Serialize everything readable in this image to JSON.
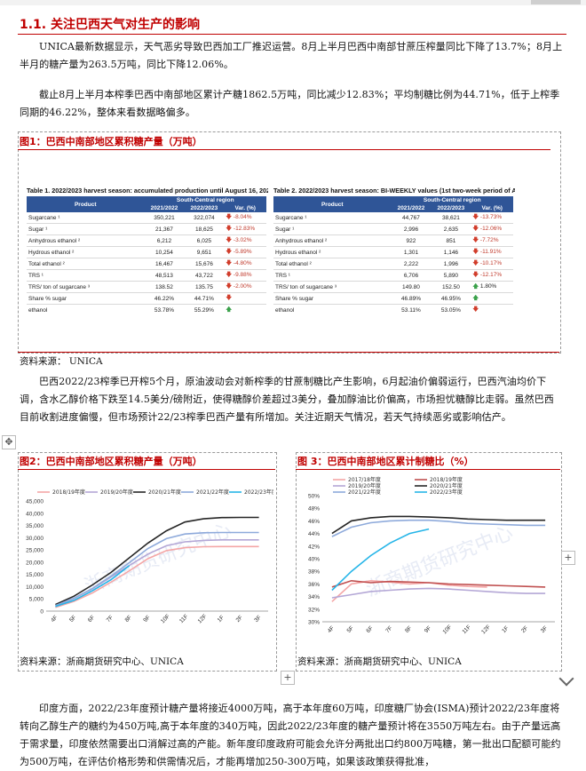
{
  "section_title": "1.1. 关注巴西天气对生产的影响",
  "paragraphs": [
    "UNICA最新数据显示，天气恶劣导致巴西加工厂推迟运营。8月上半月巴西中南部甘蔗压榨量同比下降了13.7%；8月上半月的糖产量为263.5万吨，同比下降12.06%。",
    "截止8月上半月本榨季巴西中南部地区累计产糖1862.5万吨，同比减少12.83%；平均制糖比例为44.71%，低于上榨季同期的46.22%，整体来看数据略偏多。",
    "巴西2022/23榨季已开榨5个月，原油波动会对新榨季的甘蔗制糖比产生影响，6月起油价偏弱运行，巴西汽油均价下调，含水乙醇价格下跌至14.5美分/磅附近，使得糖醇价差超过3美分，叠加醇油比价偏高，市场担忧糖醇比走弱。虽然巴西目前收割进度偏慢，但市场预计22/23榨季巴西产量有所增加。关注近期天气情况，若天气持续恶劣或影响估产。",
    "印度方面，2022/23年度预计糖产量将接近4000万吨，高于本年度60万吨，印度糖厂协会(ISMA)预计2022/23年度将转向乙醇生产的糖约为450万吨,高于本年度的340万吨，因此2022/23年度的糖产量预计将在3550万吨左右。由于产量远高于需求量，印度依然需要出口消解过高的产能。新年度印度政府可能会允许分两批出口约800万吨糖，第一批出口配额可能约为500万吨，在评估价格形势和供需情况后，才能再增加250-300万吨，如果该政策获得批准，"
  ],
  "fig1": {
    "title": "图1：巴西中南部地区累积糖产量（万吨）",
    "source": "资料来源： UNICA",
    "table_a": {
      "caption": "Table 1. 2022/2023 harvest season: accumulated production until August 16, 2022",
      "head_product": "Product",
      "head_region": "South-Central region",
      "cols": [
        "2021/2022",
        "2022/2023",
        "Var. (%)"
      ],
      "rows": [
        {
          "label": "Sugarcane ¹",
          "a": "350,221",
          "b": "322,074",
          "v": "-8.04%",
          "dir": "down"
        },
        {
          "label": "Sugar ¹",
          "a": "21,367",
          "b": "18,625",
          "v": "-12.83%",
          "dir": "down"
        },
        {
          "label": "Anhydrous ethanol ²",
          "a": "6,212",
          "b": "6,025",
          "v": "-3.02%",
          "dir": "down"
        },
        {
          "label": "Hydrous ethanol ²",
          "a": "10,254",
          "b": "9,651",
          "v": "-5.89%",
          "dir": "down"
        },
        {
          "label": "Total ethanol ²",
          "a": "16,467",
          "b": "15,676",
          "v": "-4.80%",
          "dir": "down"
        },
        {
          "label": "TRS ¹",
          "a": "48,513",
          "b": "43,722",
          "v": "-9.88%",
          "dir": "down"
        },
        {
          "label": "TRS/ ton of sugarcane ³",
          "a": "138.52",
          "b": "135.75",
          "v": "-2.00%",
          "dir": "down"
        },
        {
          "label": "Share % sugar",
          "a": "46.22%",
          "b": "44.71%",
          "v": "",
          "dir": "down"
        },
        {
          "label": "ethanol",
          "a": "53.78%",
          "b": "55.29%",
          "v": "",
          "dir": "up"
        },
        {
          "label": "Liters of ethanol/ ton of sugarcane",
          "a": "43.71",
          "b": "44.04",
          "v": "0.76%",
          "dir": "up"
        },
        {
          "label": "Kg of sugar/ ton of sugarcane",
          "a": "61.01",
          "b": "57.83",
          "v": "-5.22%",
          "dir": "down"
        }
      ]
    },
    "table_b": {
      "caption": "Table 2. 2022/2023 harvest season: BI-WEEKLY values (1st two-week period of Aug",
      "head_product": "Product",
      "head_region": "South-Central region",
      "cols": [
        "2021/2022",
        "2022/2023",
        "Var. (%)"
      ],
      "rows": [
        {
          "label": "Sugarcane ¹",
          "a": "44,767",
          "b": "38,621",
          "v": "-13.73%",
          "dir": "down"
        },
        {
          "label": "Sugar ¹",
          "a": "2,996",
          "b": "2,635",
          "v": "-12.06%",
          "dir": "down"
        },
        {
          "label": "Anhydrous ethanol ²",
          "a": "922",
          "b": "851",
          "v": "-7.72%",
          "dir": "down"
        },
        {
          "label": "Hydrous ethanol ²",
          "a": "1,301",
          "b": "1,146",
          "v": "-11.91%",
          "dir": "down"
        },
        {
          "label": "Total ethanol ²",
          "a": "2,222",
          "b": "1,996",
          "v": "-10.17%",
          "dir": "down"
        },
        {
          "label": "TRS ¹",
          "a": "6,706",
          "b": "5,890",
          "v": "-12.17%",
          "dir": "down"
        },
        {
          "label": "TRS/ ton of sugarcane ³",
          "a": "149.80",
          "b": "152.50",
          "v": "1.80%",
          "dir": "up"
        },
        {
          "label": "Share % sugar",
          "a": "46.89%",
          "b": "46.95%",
          "v": "",
          "dir": "up"
        },
        {
          "label": "ethanol",
          "a": "53.11%",
          "b": "53.05%",
          "v": "",
          "dir": "down"
        },
        {
          "label": "Liters of ethanol/ ton of sugarcane",
          "a": "46.62",
          "b": "47.40",
          "v": "1.68%",
          "dir": "up"
        },
        {
          "label": "Kg of sugar/ ton of sugarcane",
          "a": "66.93",
          "b": "68.22",
          "v": "1.93%",
          "dir": "up"
        }
      ]
    }
  },
  "fig2": {
    "title": "图2：巴西中南部地区累积糖产量（万吨）",
    "source": "资料来源：浙商期货研究中心、UNICA"
  },
  "fig3": {
    "title": "图 3：巴西中南部地区累计制糖比（%）",
    "source": "资料来源：浙商期货研究中心、UNICA"
  },
  "watermark": "浙商期货研究中心",
  "ui": {
    "plus": "+",
    "move": "✥"
  },
  "colors": {
    "accent": "#c00000",
    "s1819": "#f4a6a6",
    "s1920": "#b4a7d6",
    "s2021": "#262626",
    "s2122": "#8eaadb",
    "s2223": "#26b5e8"
  },
  "chart_data": [
    {
      "type": "line",
      "x": [
        "4F",
        "5F",
        "6F",
        "7F",
        "8F",
        "9F",
        "10F",
        "11F",
        "12F",
        "1F",
        "2F",
        "3F"
      ],
      "ylim": [
        0,
        45000
      ],
      "yticks": [
        0,
        5000,
        10000,
        15000,
        20000,
        25000,
        30000,
        35000,
        40000,
        45000
      ],
      "legend": "top",
      "series": [
        {
          "name": "2018/19年度",
          "color": "#f4a6a6",
          "values": [
            1500,
            4000,
            7400,
            11800,
            16500,
            21400,
            24700,
            25900,
            26300,
            26400,
            26400,
            26400
          ]
        },
        {
          "name": "2019/20年度",
          "color": "#b4a7d6",
          "values": [
            2200,
            5100,
            9100,
            13900,
            18700,
            23300,
            26700,
            28300,
            28900,
            29100,
            29100,
            29100
          ]
        },
        {
          "name": "2020/21年度",
          "color": "#262626",
          "values": [
            2700,
            6100,
            10700,
            15800,
            21800,
            27800,
            32800,
            36400,
            37700,
            38200,
            38300,
            38300
          ]
        },
        {
          "name": "2021/22年度",
          "color": "#8eaadb",
          "values": [
            2300,
            5300,
            9300,
            14300,
            19800,
            25600,
            29600,
            31500,
            32000,
            32100,
            32100,
            32100
          ]
        },
        {
          "name": "2022/23年度",
          "color": "#26b5e8",
          "values": [
            1900,
            4400,
            8300,
            12800,
            18600,
            null,
            null,
            null,
            null,
            null,
            null,
            null
          ]
        }
      ]
    },
    {
      "type": "line",
      "x": [
        "4F",
        "5F",
        "6F",
        "7F",
        "8F",
        "9F",
        "10F",
        "11F",
        "12F",
        "1F",
        "2F",
        "3F"
      ],
      "ylim": [
        30,
        50
      ],
      "yticks": [
        30,
        32,
        34,
        36,
        38,
        40,
        42,
        44,
        46,
        48,
        50
      ],
      "legend": "top",
      "series": [
        {
          "name": "2017/18年度",
          "color": "#f4a6a6",
          "values": [
            33.2,
            36.0,
            36.5,
            36.3,
            36.0,
            36.2,
            35.8,
            35.6,
            35.5,
            null,
            null,
            null
          ]
        },
        {
          "name": "2018/19年度",
          "color": "#c05050",
          "values": [
            35.5,
            36.5,
            36.2,
            36.4,
            36.3,
            36.2,
            36.0,
            35.9,
            35.8,
            35.7,
            35.6,
            35.5
          ]
        },
        {
          "name": "2019/20年度",
          "color": "#b4a7d6",
          "values": [
            33.8,
            34.3,
            34.8,
            35.0,
            35.2,
            35.3,
            35.2,
            35.0,
            34.8,
            34.6,
            34.5,
            34.5
          ]
        },
        {
          "name": "2020/21年度",
          "color": "#262626",
          "values": [
            44.0,
            46.0,
            46.5,
            46.7,
            46.7,
            46.6,
            46.5,
            46.3,
            46.2,
            46.1,
            46.1,
            46.1
          ]
        },
        {
          "name": "2021/22年度",
          "color": "#8eaadb",
          "values": [
            43.5,
            45.0,
            45.7,
            46.0,
            46.1,
            46.1,
            45.9,
            45.6,
            45.5,
            45.4,
            45.3,
            45.3
          ]
        },
        {
          "name": "2022/23年度",
          "color": "#26b5e8",
          "values": [
            35.0,
            38.0,
            40.5,
            42.5,
            44.0,
            44.7,
            null,
            null,
            null,
            null,
            null,
            null
          ]
        }
      ]
    }
  ]
}
